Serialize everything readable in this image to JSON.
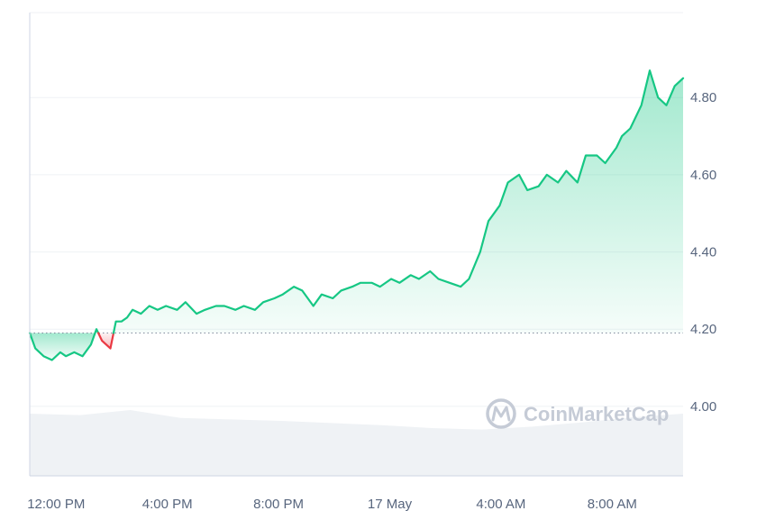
{
  "chart_data": {
    "type": "line",
    "watermark": "CoinMarketCap",
    "x_tick_labels": [
      "12:00 PM",
      "4:00 PM",
      "8:00 PM",
      "17 May",
      "4:00 AM",
      "8:00 AM"
    ],
    "y_tick_labels": [
      "4.00",
      "4.20",
      "4.40",
      "4.60",
      "4.80"
    ],
    "ylim": [
      3.82,
      5.02
    ],
    "xlim_hours": [
      0,
      23.5
    ],
    "reference_value": 4.19,
    "grid": true,
    "colors": {
      "up_line": "#16c784",
      "down_line": "#ea3943",
      "up_fill": "#16c784",
      "down_fill": "#ea3943",
      "volume_fill": "#eff2f5",
      "grid": "#eff2f5",
      "axis": "#cfd6e4",
      "reference": "#808a9d"
    },
    "series": [
      {
        "x": [
          0,
          0.2,
          0.5,
          0.8,
          1.1,
          1.3,
          1.6,
          1.9,
          2.2,
          2.4,
          2.6,
          2.9,
          3.1,
          3.3,
          3.5,
          3.7,
          4.0,
          4.3,
          4.6,
          4.9,
          5.3,
          5.6,
          6.0,
          6.3,
          6.7,
          7.0,
          7.4,
          7.7,
          8.1,
          8.4,
          8.8,
          9.1,
          9.5,
          9.8,
          10.2,
          10.5,
          10.9,
          11.2,
          11.6,
          11.9,
          12.3,
          12.6,
          13.0,
          13.3,
          13.7,
          14.0,
          14.4,
          14.7,
          15.1,
          15.5,
          15.8,
          16.2,
          16.5,
          16.9,
          17.2,
          17.6,
          17.9,
          18.3,
          18.6,
          19.0,
          19.3,
          19.7,
          20.0,
          20.4,
          20.7,
          21.1,
          21.3,
          21.6,
          22.0,
          22.3,
          22.6,
          22.9,
          23.2,
          23.5
        ],
        "y": [
          4.19,
          4.15,
          4.13,
          4.12,
          4.14,
          4.13,
          4.14,
          4.13,
          4.16,
          4.2,
          4.17,
          4.15,
          4.22,
          4.22,
          4.23,
          4.25,
          4.24,
          4.26,
          4.25,
          4.26,
          4.25,
          4.27,
          4.24,
          4.25,
          4.26,
          4.26,
          4.25,
          4.26,
          4.25,
          4.27,
          4.28,
          4.29,
          4.31,
          4.3,
          4.26,
          4.29,
          4.28,
          4.3,
          4.31,
          4.32,
          4.32,
          4.31,
          4.33,
          4.32,
          4.34,
          4.33,
          4.35,
          4.33,
          4.32,
          4.31,
          4.33,
          4.4,
          4.48,
          4.52,
          4.58,
          4.6,
          4.56,
          4.57,
          4.6,
          4.58,
          4.61,
          4.58,
          4.65,
          4.65,
          4.63,
          4.67,
          4.7,
          4.72,
          4.78,
          4.87,
          4.8,
          4.78,
          4.83,
          4.85
        ]
      }
    ]
  }
}
